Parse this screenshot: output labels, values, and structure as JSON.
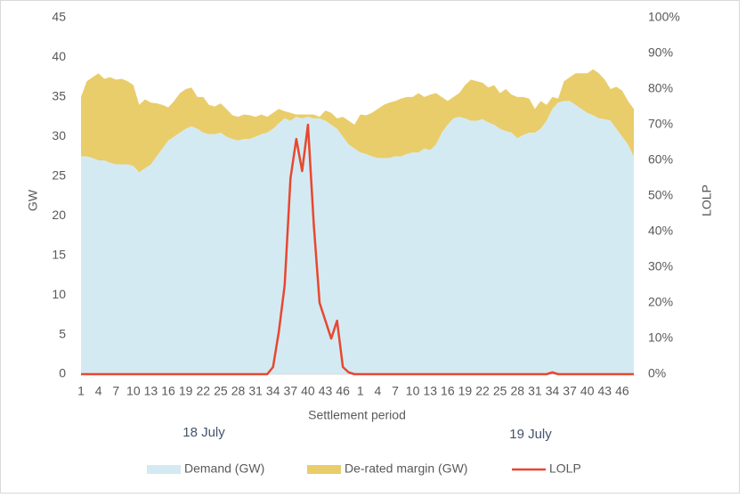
{
  "chart_data": {
    "type": "stacked-area-line",
    "x_label": "Settlement period",
    "y_label": "GW",
    "y2_label": "LOLP",
    "annotations": [
      "18 July",
      "19 July"
    ],
    "categories": [
      "1",
      null,
      null,
      "4",
      null,
      null,
      "7",
      null,
      null,
      "10",
      null,
      null,
      "13",
      null,
      null,
      "16",
      null,
      null,
      "19",
      null,
      null,
      "22",
      null,
      null,
      "25",
      null,
      null,
      "28",
      null,
      null,
      "31",
      null,
      null,
      "34",
      null,
      null,
      "37",
      null,
      null,
      "40",
      null,
      null,
      "43",
      null,
      null,
      "46",
      null,
      null,
      "1",
      null,
      null,
      "4",
      null,
      null,
      "7",
      null,
      null,
      "10",
      null,
      null,
      "13",
      null,
      null,
      "16",
      null,
      null,
      "19",
      null,
      null,
      "22",
      null,
      null,
      "25",
      null,
      null,
      "28",
      null,
      null,
      "31",
      null,
      null,
      "34",
      null,
      null,
      "37",
      null,
      null,
      "40",
      null,
      null,
      "43",
      null,
      null,
      "46",
      null,
      null
    ],
    "series": [
      {
        "name": "Demand (GW)",
        "color": "#d4eaf2",
        "kind": "area",
        "values": [
          27.5,
          27.5,
          27.3,
          27,
          27,
          26.7,
          26.5,
          26.5,
          26.5,
          26.3,
          25.5,
          26,
          26.5,
          27.5,
          28.5,
          29.5,
          30,
          30.5,
          31,
          31.3,
          31,
          30.5,
          30.3,
          30.3,
          30.5,
          30,
          29.7,
          29.5,
          29.7,
          29.7,
          30,
          30.3,
          30.5,
          31,
          31.7,
          32.3,
          32,
          32.5,
          32.3,
          32.5,
          32.3,
          32.3,
          32,
          31.5,
          31,
          30,
          29,
          28.5,
          28,
          27.8,
          27.5,
          27.3,
          27.3,
          27.3,
          27.5,
          27.5,
          27.8,
          28,
          28,
          28.5,
          28.3,
          29,
          30.5,
          31.5,
          32.3,
          32.5,
          32.3,
          32,
          32,
          32.2,
          31.8,
          31.5,
          31,
          30.7,
          30.5,
          29.8,
          30.2,
          30.5,
          30.5,
          31,
          32,
          33.5,
          34.3,
          34.5,
          34.5,
          34,
          33.5,
          33,
          32.7,
          32.3,
          32.2,
          32,
          31,
          30,
          29,
          27.5
        ]
      },
      {
        "name": "De-rated margin (GW)",
        "color": "#e9cd6b",
        "kind": "area",
        "values": [
          7.5,
          9.5,
          10.2,
          11,
          10.3,
          10.8,
          10.7,
          10.8,
          10.5,
          10.2,
          8.5,
          8.7,
          7.8,
          6.7,
          5.5,
          4.2,
          4.5,
          5,
          5,
          4.9,
          4,
          4.5,
          3.7,
          3.5,
          3.7,
          3.5,
          3,
          3,
          3.1,
          3,
          2.5,
          2.5,
          2,
          2,
          1.8,
          0.9,
          1,
          0.3,
          0.5,
          0.3,
          0.5,
          0.2,
          1.3,
          1.5,
          1.3,
          2.5,
          3,
          3,
          4.8,
          4.9,
          5.5,
          6.2,
          6.7,
          7,
          7,
          7.3,
          7.2,
          7,
          7.5,
          6.5,
          7,
          6.5,
          4.5,
          3,
          2.7,
          3,
          4.2,
          5.2,
          5,
          4.6,
          4.4,
          5,
          4.5,
          5.3,
          4.8,
          5.2,
          4.8,
          4.3,
          3,
          3.5,
          2,
          1.5,
          0.5,
          2.5,
          3,
          4,
          4.5,
          5,
          5.8,
          5.7,
          5,
          4,
          5.3,
          5.8,
          5.5,
          6
        ]
      },
      {
        "name": "LOLP",
        "color": "#e8472f",
        "kind": "line",
        "axis": "y2",
        "values": [
          0,
          0,
          0,
          0,
          0,
          0,
          0,
          0,
          0,
          0,
          0,
          0,
          0,
          0,
          0,
          0,
          0,
          0,
          0,
          0,
          0,
          0,
          0,
          0,
          0,
          0,
          0,
          0,
          0,
          0,
          0,
          0,
          0,
          2,
          12,
          25,
          55,
          66,
          57,
          70,
          42,
          20,
          15,
          10,
          15,
          2,
          0.5,
          0,
          0,
          0,
          0,
          0,
          0,
          0,
          0,
          0,
          0,
          0,
          0,
          0,
          0,
          0,
          0,
          0,
          0,
          0,
          0,
          0,
          0,
          0,
          0,
          0,
          0,
          0,
          0,
          0,
          0,
          0,
          0,
          0,
          0,
          0.5,
          0,
          0,
          0,
          0,
          0,
          0,
          0,
          0,
          0,
          0,
          0,
          0,
          0,
          0
        ]
      }
    ],
    "ylim": [
      0,
      45
    ],
    "yticks": [
      0,
      5,
      10,
      15,
      20,
      25,
      30,
      35,
      40,
      45
    ],
    "y2lim": [
      0,
      100
    ],
    "y2ticks": [
      {
        "value": 0,
        "label": "0%"
      },
      {
        "value": 10,
        "label": "10%"
      },
      {
        "value": 20,
        "label": "20%"
      },
      {
        "value": 30,
        "label": "30%"
      },
      {
        "value": 40,
        "label": "40%"
      },
      {
        "value": 50,
        "label": "50%"
      },
      {
        "value": 60,
        "label": "60%"
      },
      {
        "value": 70,
        "label": "70%"
      },
      {
        "value": 80,
        "label": "80%"
      },
      {
        "value": 90,
        "label": "90%"
      },
      {
        "value": 100,
        "label": "100%"
      }
    ],
    "legend": "bottom",
    "grid": false
  }
}
